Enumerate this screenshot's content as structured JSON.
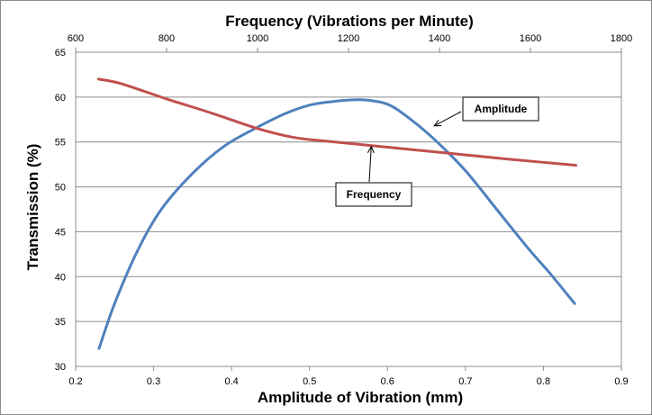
{
  "chart_data": {
    "type": "line",
    "title": "Frequency (Vibrations per Minute)",
    "xlabel": "Amplitude of Vibration (mm)",
    "ylabel": "Transmission (%)",
    "grid": true,
    "x_bottom": {
      "range": [
        0.2,
        0.9
      ],
      "ticks": [
        0.2,
        0.3,
        0.4,
        0.5,
        0.6,
        0.7,
        0.8,
        0.9
      ],
      "tick_labels": [
        "0.2",
        "0.3",
        "0.4",
        "0.5",
        "0.6",
        "0.7",
        "0.8",
        "0.9"
      ]
    },
    "x_top": {
      "range": [
        600,
        1800
      ],
      "ticks": [
        600,
        800,
        1000,
        1200,
        1400,
        1600,
        1800
      ],
      "tick_labels": [
        "600",
        "800",
        "1000",
        "1200",
        "1400",
        "1600",
        "1800"
      ]
    },
    "y": {
      "range": [
        30,
        65
      ],
      "ticks": [
        30,
        35,
        40,
        45,
        50,
        55,
        60,
        65
      ],
      "tick_labels": [
        "30",
        "35",
        "40",
        "45",
        "50",
        "55",
        "60",
        "65"
      ]
    },
    "series": [
      {
        "name": "Amplitude",
        "axis": "bottom",
        "color": "#4f81bd",
        "x": [
          0.23,
          0.25,
          0.28,
          0.31,
          0.35,
          0.39,
          0.43,
          0.47,
          0.5,
          0.53,
          0.565,
          0.6,
          0.63,
          0.66,
          0.7,
          0.74,
          0.78,
          0.81,
          0.84
        ],
        "y": [
          32,
          37,
          43,
          47.5,
          51.5,
          54.5,
          56.5,
          58.2,
          59.1,
          59.5,
          59.7,
          59.2,
          57.5,
          55.3,
          51.8,
          47.5,
          43.2,
          40.2,
          37
        ]
      },
      {
        "name": "Frequency",
        "axis": "top",
        "color": "#c0504d",
        "x": [
          650,
          700,
          800,
          900,
          1000,
          1080,
          1150,
          1250,
          1350,
          1450,
          1550,
          1700
        ],
        "y": [
          62,
          61.5,
          59.8,
          58.2,
          56.5,
          55.5,
          55.1,
          54.6,
          54.1,
          53.6,
          53.1,
          52.4
        ]
      }
    ],
    "annotations": [
      {
        "text": "Amplitude",
        "series": "Amplitude",
        "x": 0.66,
        "y": 56.8
      },
      {
        "text": "Frequency",
        "series": "Frequency",
        "x": 1250,
        "y": 54.5
      }
    ]
  }
}
